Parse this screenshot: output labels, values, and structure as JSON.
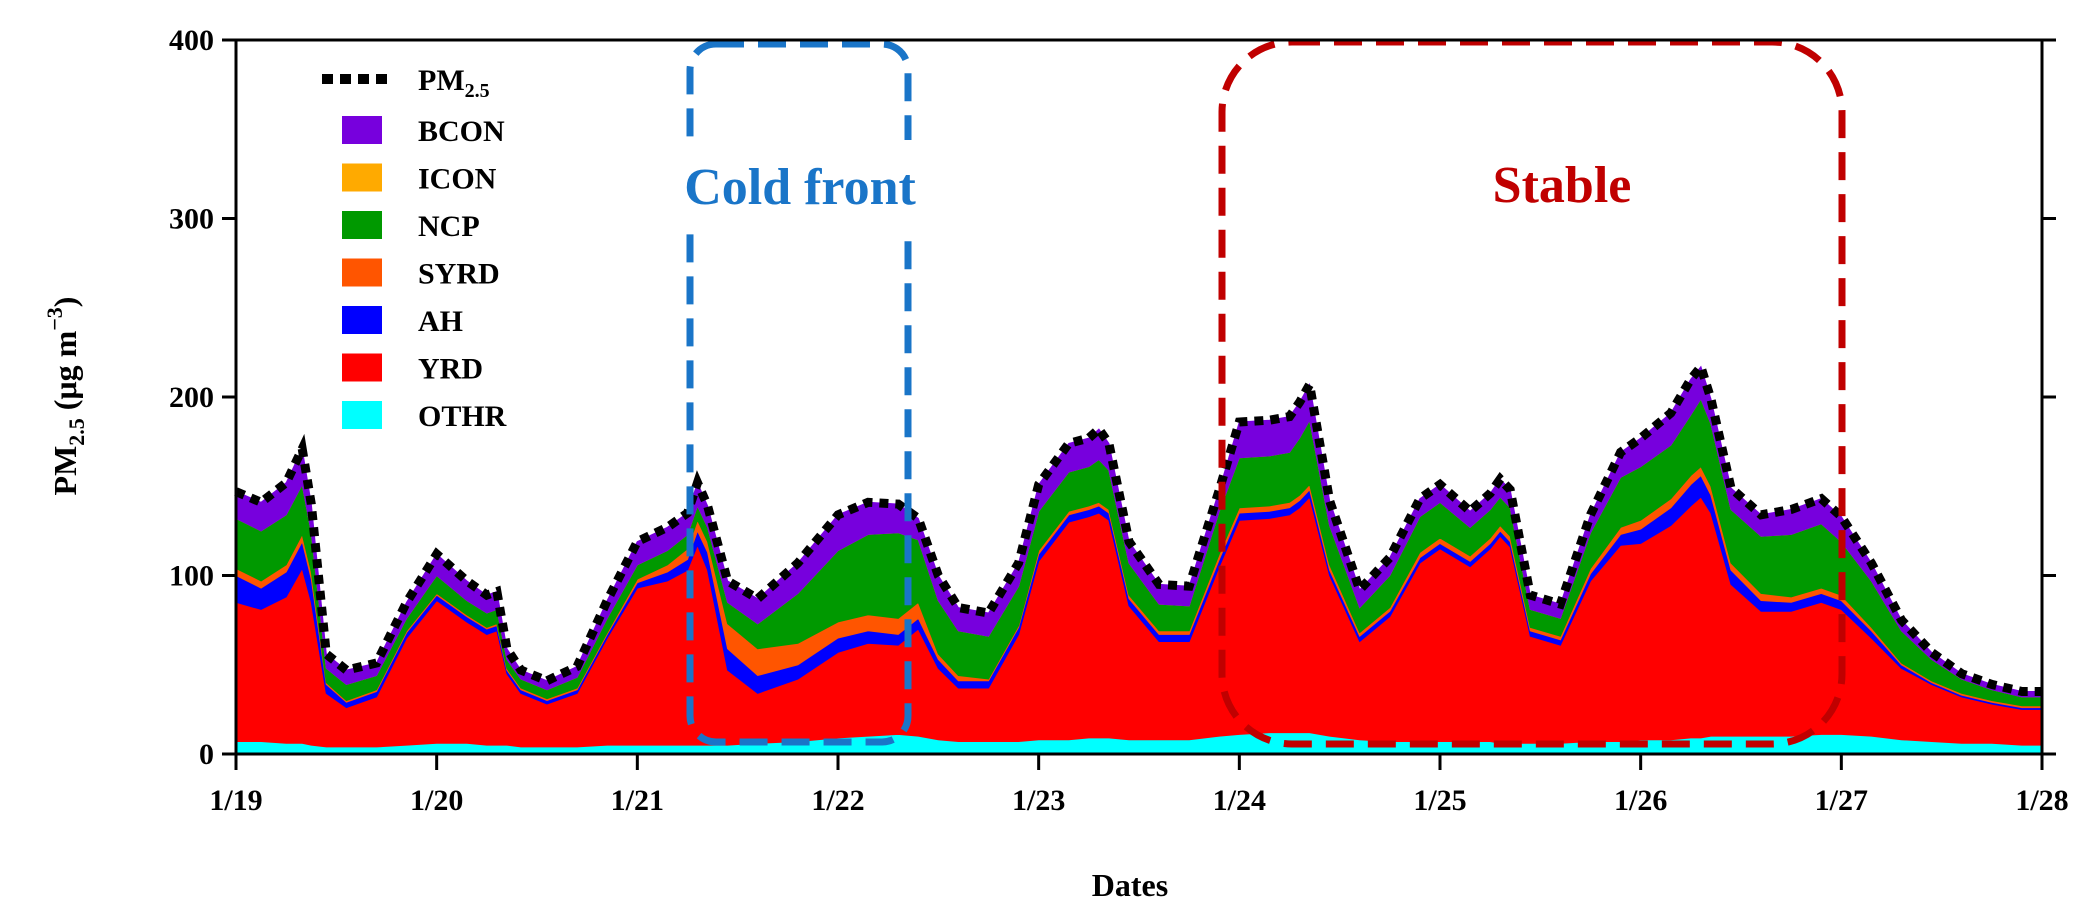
{
  "chart_data": {
    "type": "area",
    "stacked": true,
    "xlabel": "Dates",
    "ylabel_main": "PM",
    "ylabel_sub": "2.5",
    "ylabel_unit_open": " (μg m",
    "ylabel_unit_exp": "−3",
    "ylabel_unit_close": ")",
    "ylim": [
      0,
      400
    ],
    "yticks": [
      "0",
      "100",
      "200",
      "300",
      "400"
    ],
    "xticks": [
      "1/19",
      "1/20",
      "1/21",
      "1/22",
      "1/23",
      "1/24",
      "1/25",
      "1/26",
      "1/27",
      "1/28"
    ],
    "xrange_days": [
      0,
      9
    ],
    "legend_position": "top-left",
    "total_series": {
      "name_main": "PM",
      "name_sub": "2.5",
      "color": "#000000",
      "style": "dotted"
    },
    "x": [
      0.0,
      0.125,
      0.25,
      0.33,
      0.375,
      0.45,
      0.55,
      0.7,
      0.85,
      1.0,
      1.15,
      1.25,
      1.3,
      1.35,
      1.42,
      1.55,
      1.7,
      1.85,
      2.0,
      2.15,
      2.25,
      2.3,
      2.35,
      2.45,
      2.6,
      2.8,
      3.0,
      3.15,
      3.3,
      3.4,
      3.5,
      3.6,
      3.75,
      3.9,
      4.0,
      4.15,
      4.25,
      4.3,
      4.35,
      4.45,
      4.6,
      4.75,
      4.9,
      5.0,
      5.15,
      5.25,
      5.3,
      5.35,
      5.45,
      5.6,
      5.75,
      5.9,
      6.0,
      6.15,
      6.25,
      6.3,
      6.35,
      6.45,
      6.6,
      6.75,
      6.9,
      7.0,
      7.15,
      7.25,
      7.3,
      7.35,
      7.45,
      7.6,
      7.75,
      7.9,
      8.0,
      8.15,
      8.3,
      8.45,
      8.6,
      8.75,
      8.9,
      9.0
    ],
    "series": [
      {
        "name": "OTHR",
        "color": "#00ffff",
        "values": [
          7,
          7,
          6,
          6,
          5,
          4,
          4,
          4,
          5,
          6,
          6,
          5,
          5,
          5,
          4,
          4,
          4,
          5,
          5,
          5,
          5,
          5,
          5,
          5,
          6,
          7,
          9,
          10,
          11,
          10,
          8,
          7,
          7,
          7,
          8,
          8,
          9,
          9,
          9,
          8,
          8,
          8,
          10,
          11,
          12,
          12,
          12,
          12,
          10,
          8,
          7,
          7,
          7,
          7,
          7,
          6,
          6,
          6,
          6,
          7,
          7,
          8,
          8,
          9,
          9,
          10,
          10,
          10,
          10,
          11,
          11,
          10,
          8,
          7,
          6,
          6,
          5,
          5
        ]
      },
      {
        "name": "YRD",
        "color": "#ff0000",
        "values": [
          78,
          74,
          82,
          98,
          80,
          30,
          22,
          28,
          60,
          80,
          68,
          62,
          64,
          40,
          30,
          24,
          30,
          60,
          88,
          92,
          98,
          112,
          98,
          42,
          28,
          35,
          48,
          52,
          50,
          60,
          40,
          30,
          30,
          60,
          100,
          122,
          124,
          126,
          122,
          75,
          55,
          55,
          95,
          120,
          120,
          122,
          126,
          132,
          90,
          55,
          70,
          100,
          108,
          98,
          108,
          116,
          110,
          60,
          55,
          90,
          110,
          110,
          120,
          130,
          135,
          125,
          85,
          70,
          70,
          74,
          70,
          55,
          40,
          32,
          26,
          22,
          20,
          20
        ]
      },
      {
        "name": "AH",
        "color": "#0000ff",
        "values": [
          15,
          12,
          14,
          15,
          13,
          5,
          3,
          3,
          3,
          3,
          3,
          3,
          3,
          2,
          2,
          2,
          2,
          2,
          3,
          5,
          6,
          8,
          10,
          12,
          10,
          8,
          8,
          7,
          6,
          6,
          5,
          4,
          4,
          4,
          4,
          4,
          4,
          4,
          4,
          4,
          4,
          4,
          4,
          4,
          4,
          4,
          4,
          4,
          3,
          3,
          3,
          3,
          3,
          3,
          3,
          3,
          3,
          3,
          3,
          4,
          6,
          8,
          10,
          12,
          12,
          10,
          8,
          6,
          5,
          5,
          5,
          4,
          2,
          1,
          1,
          1,
          1,
          1
        ]
      },
      {
        "name": "SYRD",
        "color": "#ff5500",
        "values": [
          4,
          4,
          4,
          4,
          4,
          1,
          1,
          1,
          1,
          1,
          1,
          1,
          1,
          1,
          1,
          1,
          1,
          1,
          2,
          4,
          6,
          6,
          6,
          14,
          15,
          12,
          9,
          9,
          9,
          9,
          3,
          3,
          1,
          1,
          2,
          2,
          2,
          2,
          2,
          2,
          2,
          2,
          3,
          3,
          3,
          3,
          3,
          3,
          3,
          2,
          2,
          3,
          3,
          3,
          3,
          3,
          3,
          2,
          2,
          3,
          4,
          5,
          5,
          5,
          5,
          5,
          4,
          4,
          3,
          3,
          3,
          2,
          1,
          1,
          1,
          1,
          1,
          1
        ]
      },
      {
        "name": "NCP",
        "color": "#009900",
        "values": [
          28,
          28,
          28,
          28,
          22,
          8,
          9,
          8,
          7,
          10,
          8,
          8,
          8,
          5,
          5,
          5,
          6,
          8,
          8,
          8,
          8,
          8,
          8,
          12,
          14,
          28,
          40,
          45,
          48,
          35,
          30,
          25,
          24,
          22,
          22,
          22,
          22,
          24,
          22,
          18,
          15,
          14,
          24,
          28,
          28,
          28,
          32,
          36,
          22,
          14,
          18,
          20,
          20,
          16,
          16,
          16,
          16,
          10,
          10,
          20,
          28,
          30,
          30,
          34,
          38,
          35,
          30,
          32,
          35,
          36,
          30,
          26,
          18,
          12,
          8,
          6,
          5,
          5
        ]
      },
      {
        "name": "ICON",
        "color": "#ffaa00",
        "values": [
          0,
          0,
          0,
          0,
          0,
          0,
          0,
          0,
          0,
          0,
          0,
          0,
          0,
          0,
          0,
          0,
          0,
          0,
          0,
          0,
          0,
          0,
          0,
          0,
          0,
          0,
          0,
          0,
          0,
          0,
          0,
          0,
          0,
          0,
          0,
          0,
          0,
          0,
          0,
          0,
          0,
          0,
          0,
          0,
          0,
          0,
          0,
          0,
          0,
          0,
          0,
          0,
          0,
          0,
          0,
          0,
          0,
          0,
          0,
          0,
          0,
          0,
          0,
          0,
          0,
          0,
          0,
          0,
          0,
          0,
          0,
          0,
          0,
          0,
          0,
          0,
          0,
          0
        ]
      },
      {
        "name": "BCON",
        "color": "#7700dd",
        "values": [
          15,
          16,
          18,
          20,
          16,
          8,
          8,
          7,
          9,
          12,
          11,
          10,
          10,
          6,
          5,
          5,
          6,
          10,
          13,
          13,
          12,
          13,
          12,
          12,
          14,
          17,
          20,
          18,
          16,
          12,
          14,
          13,
          13,
          13,
          15,
          16,
          16,
          17,
          15,
          12,
          11,
          11,
          12,
          20,
          20,
          20,
          20,
          20,
          14,
          10,
          10,
          10,
          10,
          9,
          9,
          10,
          10,
          8,
          8,
          10,
          14,
          16,
          18,
          20,
          18,
          14,
          12,
          12,
          14,
          14,
          14,
          10,
          6,
          4,
          3,
          3,
          3,
          3
        ]
      }
    ],
    "annotations": [
      {
        "text": "Cold front",
        "color": "#1a75c8"
      },
      {
        "text": "Stable",
        "color": "#c00000"
      }
    ]
  }
}
